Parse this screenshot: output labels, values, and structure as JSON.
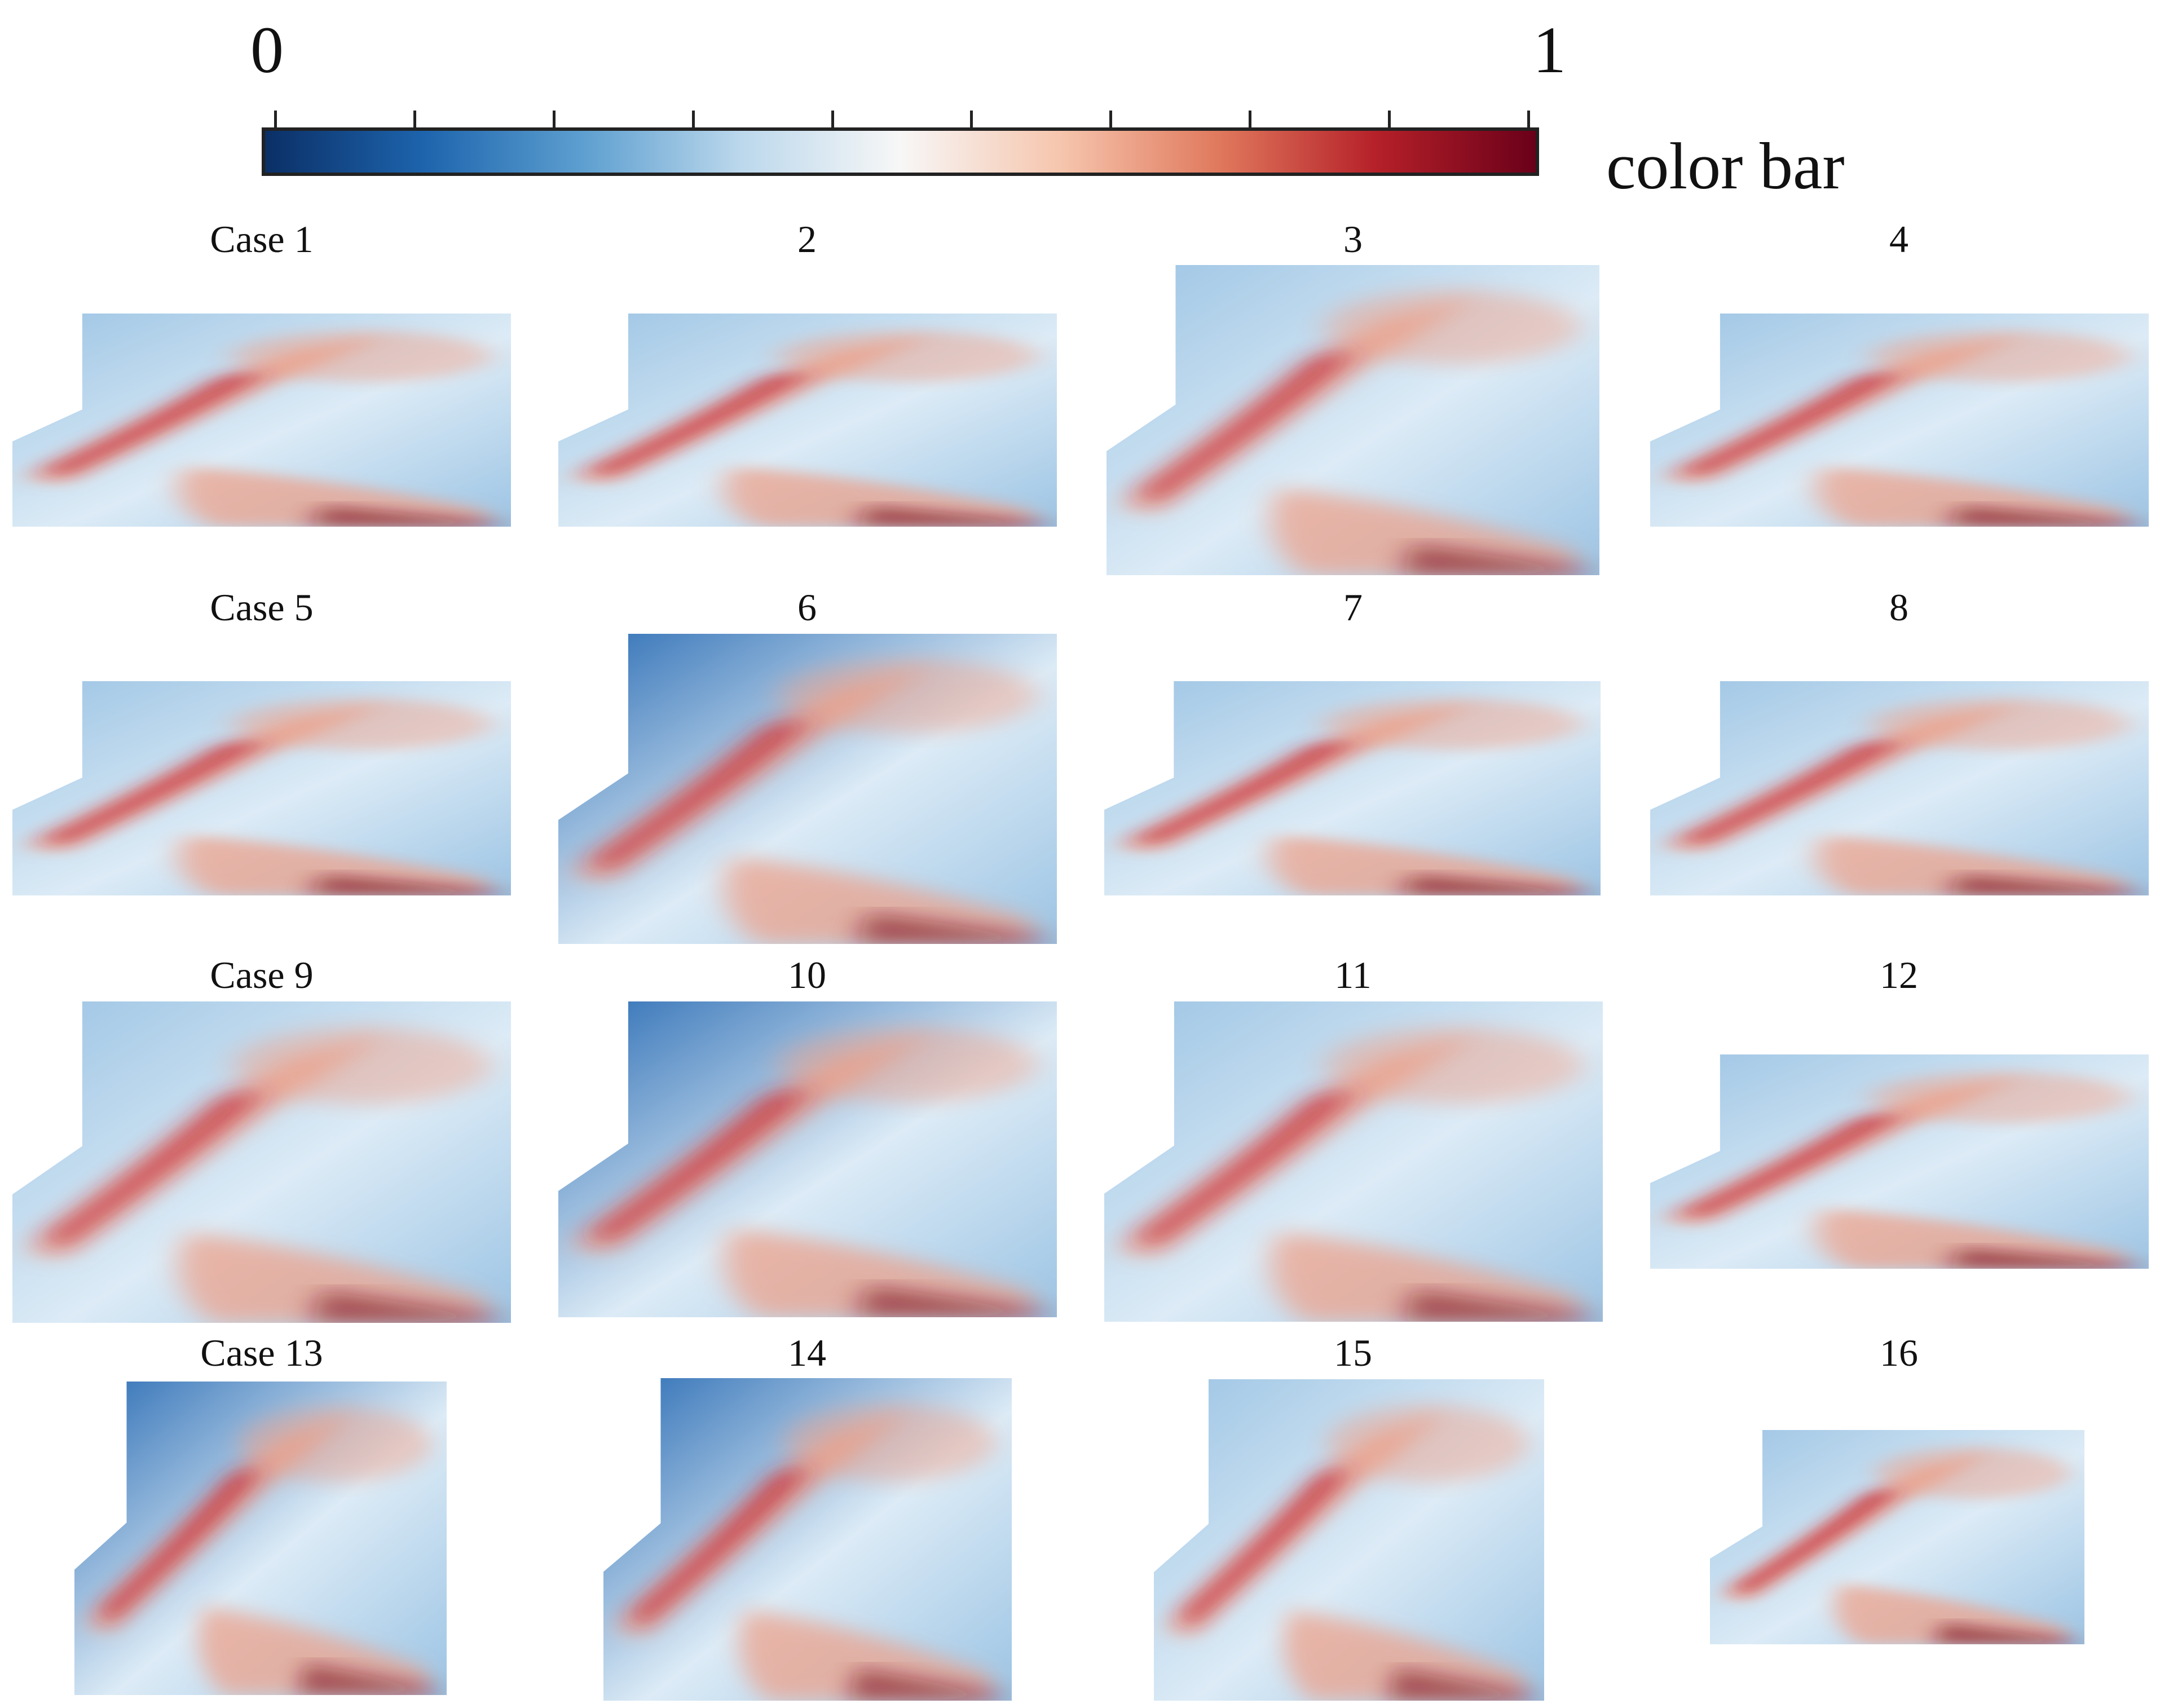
{
  "colorbar": {
    "min_label": "0",
    "max_label": "1",
    "title": "color bar",
    "stops": [
      "#0b2f66",
      "#1d64ad",
      "#5d9fd0",
      "#bcd8ec",
      "#f7f7f7",
      "#f6c6ae",
      "#e0795d",
      "#b52029",
      "#6a0019"
    ],
    "tick_count": 10
  },
  "palette": {
    "bg_low": "#2a6cb4",
    "bg_mid": "#9cc4e4",
    "bg_pale": "#dcebf6",
    "hot": "#c4202e",
    "warm": "#ef9f86",
    "deep": "#7e0c1b"
  },
  "cases": [
    {
      "label": "Case 1"
    },
    {
      "label": "2"
    },
    {
      "label": "3"
    },
    {
      "label": "4"
    },
    {
      "label": "Case 5"
    },
    {
      "label": "6"
    },
    {
      "label": "7"
    },
    {
      "label": "8"
    },
    {
      "label": "Case 9"
    },
    {
      "label": "10"
    },
    {
      "label": "11"
    },
    {
      "label": "12"
    },
    {
      "label": "Case 13"
    },
    {
      "label": "14"
    },
    {
      "label": "15"
    },
    {
      "label": "16"
    }
  ]
}
